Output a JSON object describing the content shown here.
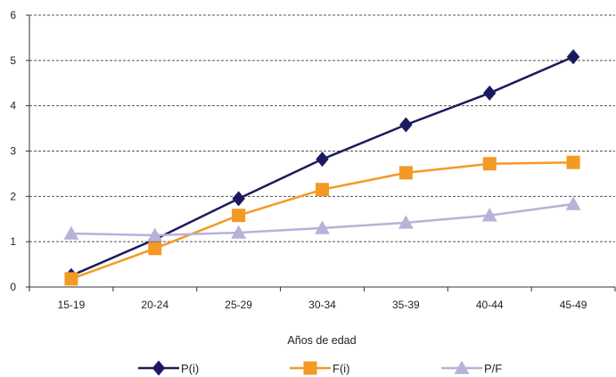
{
  "chart_data": {
    "type": "line",
    "categories": [
      "15-19",
      "20-24",
      "25-29",
      "30-34",
      "35-39",
      "40-44",
      "45-49"
    ],
    "series": [
      {
        "name": "P(i)",
        "values": [
          0.25,
          1.05,
          1.95,
          2.82,
          3.58,
          4.28,
          5.08
        ],
        "color": "#1c1a5e",
        "marker": "diamond"
      },
      {
        "name": "F(i)",
        "values": [
          0.18,
          0.85,
          1.58,
          2.15,
          2.52,
          2.72,
          2.75
        ],
        "color": "#f39a24",
        "marker": "square"
      },
      {
        "name": "P/F",
        "values": [
          1.18,
          1.14,
          1.2,
          1.3,
          1.42,
          1.58,
          1.83
        ],
        "color": "#b8b2d8",
        "marker": "triangle"
      }
    ],
    "title": "",
    "xlabel": "Años de edad",
    "ylabel": "",
    "ylim": [
      0,
      6
    ],
    "yticks": [
      0,
      1,
      2,
      3,
      4,
      5,
      6
    ],
    "grid": "horizontal-dashed",
    "legend_position": "bottom"
  }
}
